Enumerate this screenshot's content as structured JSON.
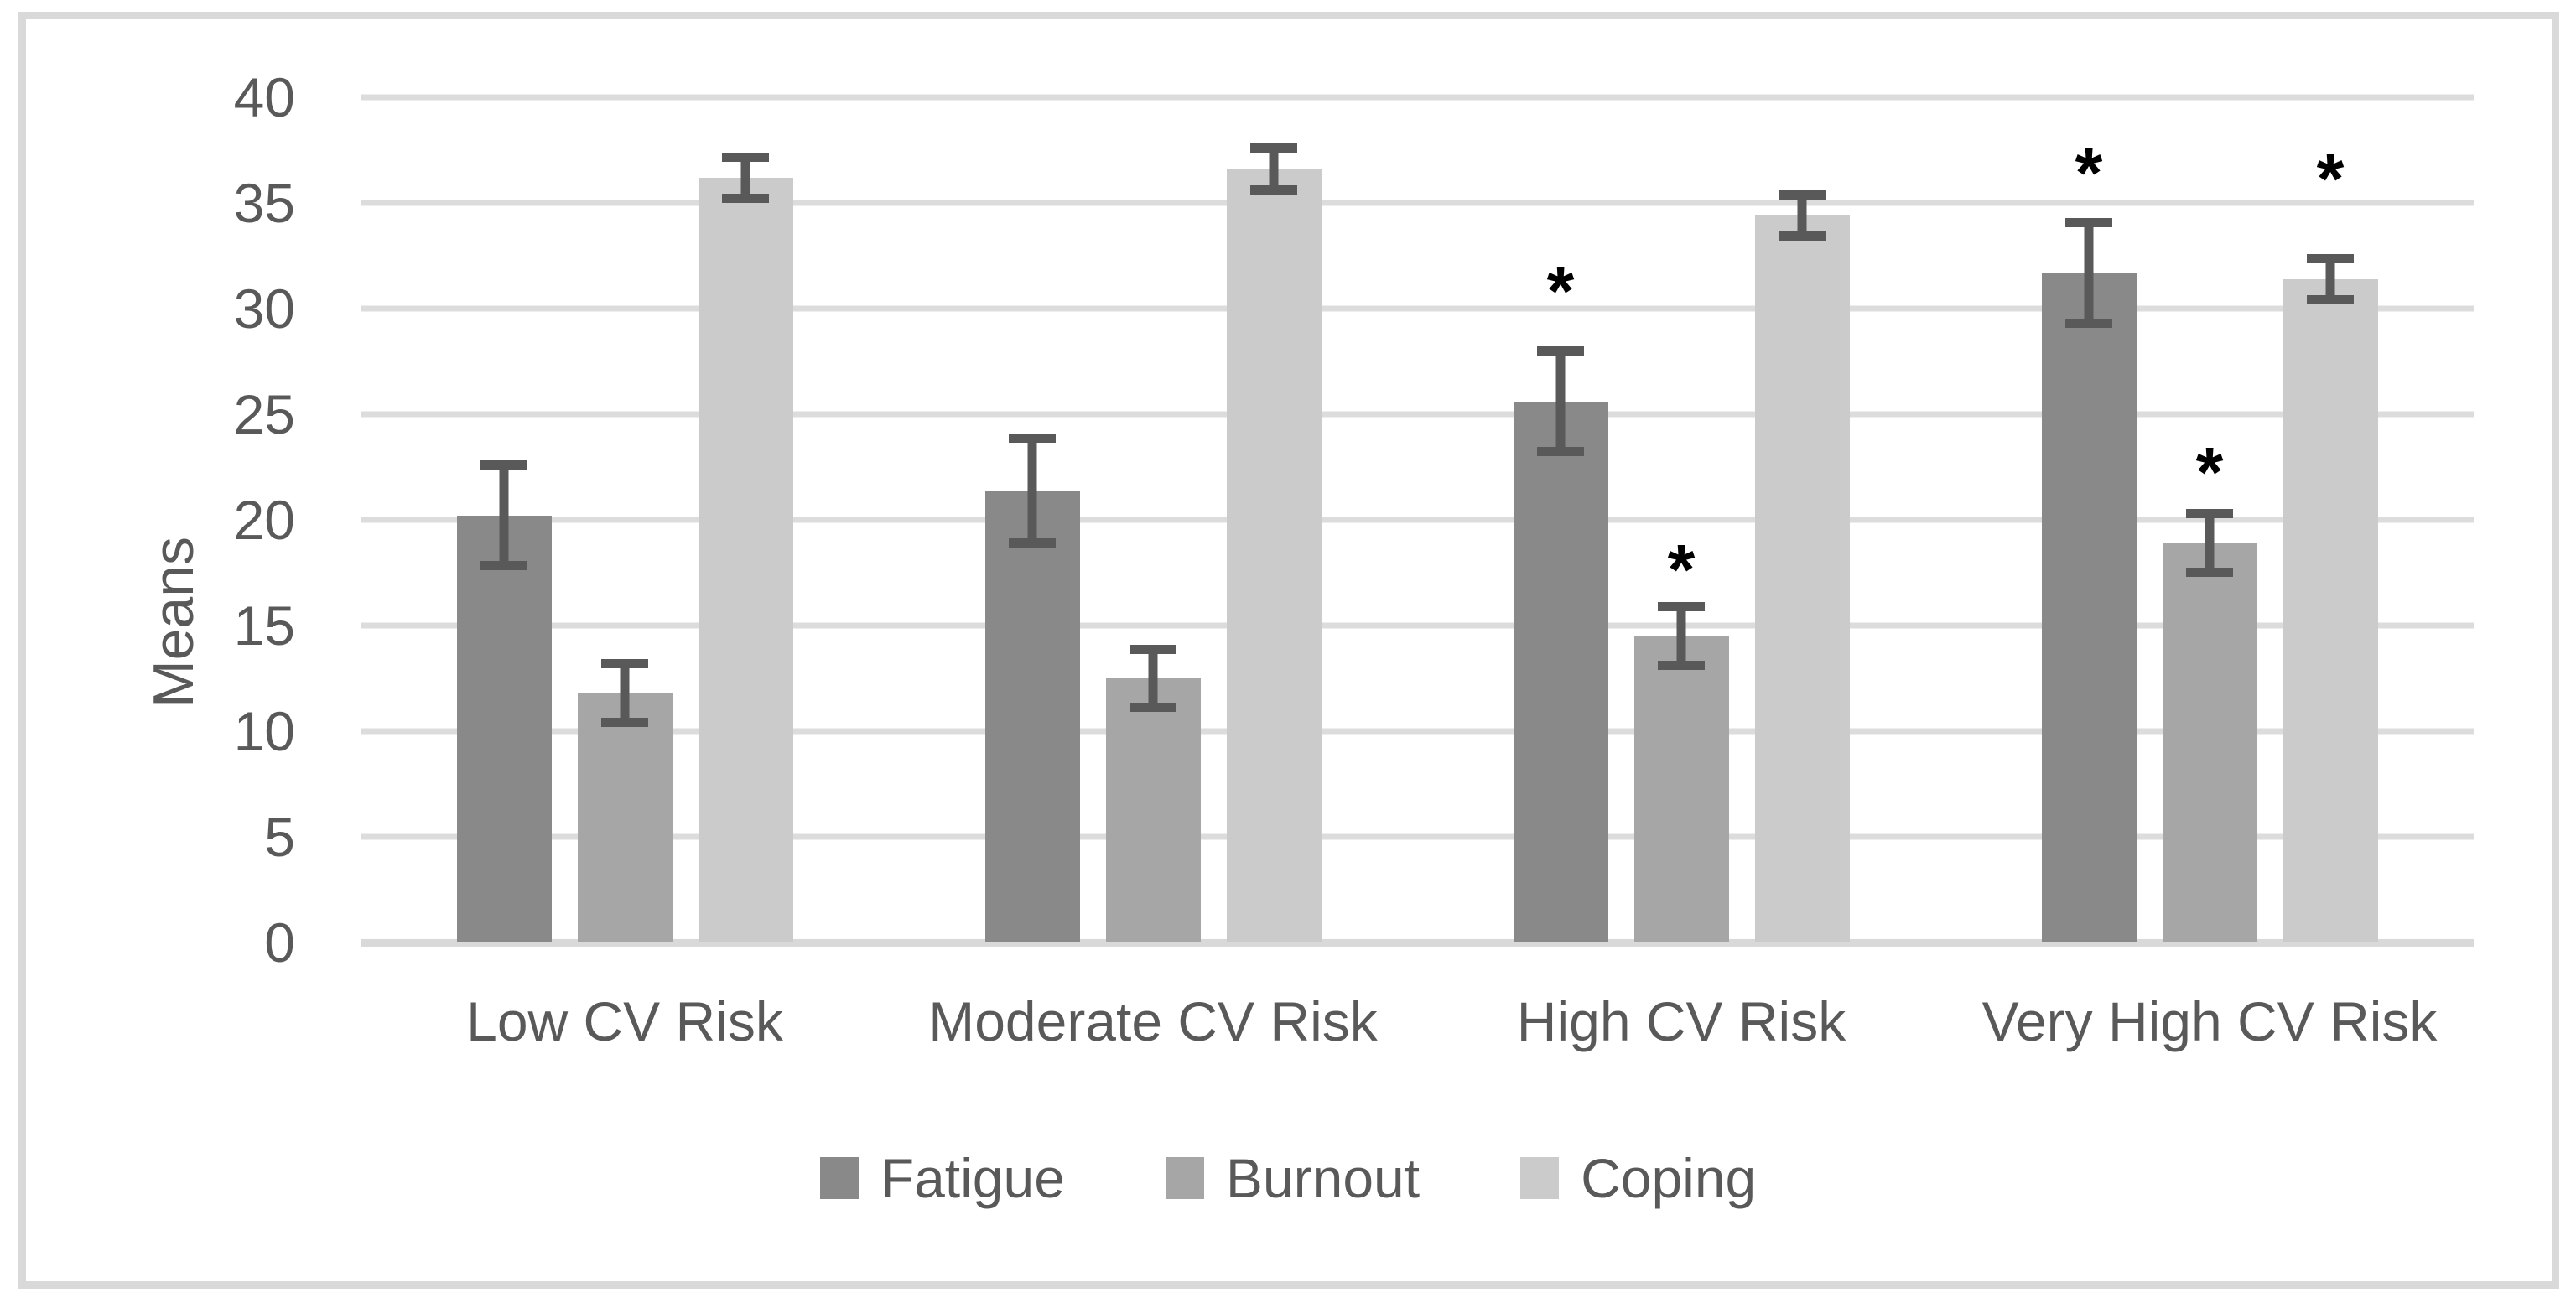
{
  "chart_data": {
    "type": "bar",
    "title": "",
    "xlabel": "",
    "ylabel": "Means",
    "ylim": [
      0,
      40
    ],
    "y_ticks": [
      0,
      5,
      10,
      15,
      20,
      25,
      30,
      35,
      40
    ],
    "grid": true,
    "legend_position": "bottom",
    "sig_marker": "*",
    "categories": [
      "Low CV Risk",
      "Moderate CV Risk",
      "High CV Risk",
      "Very High CV Risk"
    ],
    "series": [
      {
        "name": "Fatigue",
        "color": "#898989",
        "values": [
          20.2,
          21.4,
          25.6,
          31.7
        ],
        "errors": [
          2.6,
          2.7,
          2.6,
          2.6
        ],
        "sig_y": [
          null,
          null,
          31.3,
          36.9
        ]
      },
      {
        "name": "Burnout",
        "color": "#a6a6a6",
        "values": [
          11.8,
          12.5,
          14.5,
          18.9
        ],
        "errors": [
          1.6,
          1.6,
          1.6,
          1.6
        ],
        "sig_y": [
          null,
          null,
          18.1,
          22.7
        ]
      },
      {
        "name": "Coping",
        "color": "#cbcbcb",
        "values": [
          36.2,
          36.6,
          34.4,
          31.4
        ],
        "errors": [
          1.2,
          1.2,
          1.2,
          1.2
        ],
        "sig_y": [
          null,
          null,
          null,
          36.6
        ]
      }
    ],
    "colors": {
      "error_bar": "#595959",
      "gridline": "#dcdcdc",
      "axis_line": "#d9d9d9",
      "axis_text": "#595959",
      "sig_marker": "#000000",
      "frame_border": "#d9d9d9",
      "background": "#ffffff"
    }
  }
}
